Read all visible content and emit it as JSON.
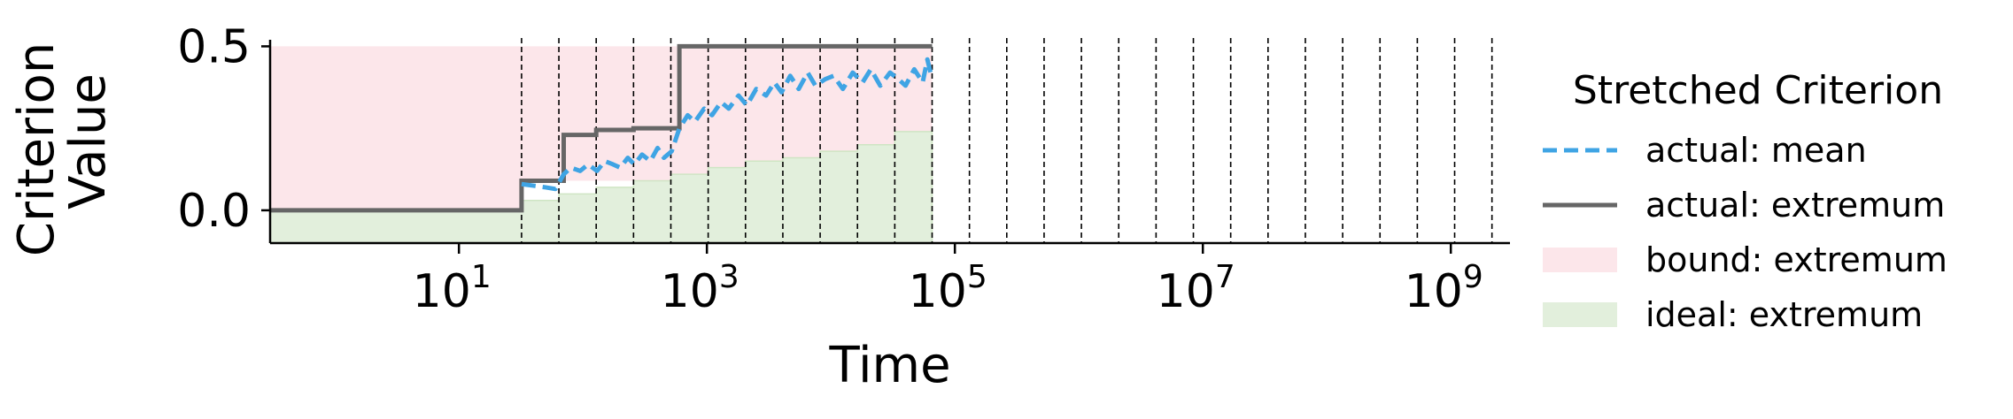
{
  "chart_data": {
    "type": "line",
    "xlabel": "Time",
    "ylabel_lines": [
      "Criterion",
      "Value"
    ],
    "xscale": "log",
    "xlim": [
      0.3,
      3000000000
    ],
    "ylim": [
      -0.1,
      0.52
    ],
    "xticks": [
      {
        "value": 10,
        "base": "10",
        "exp": "1"
      },
      {
        "value": 1000,
        "base": "10",
        "exp": "3"
      },
      {
        "value": 100000,
        "base": "10",
        "exp": "5"
      },
      {
        "value": 10000000,
        "base": "10",
        "exp": "7"
      },
      {
        "value": 1000000000,
        "base": "10",
        "exp": "9"
      }
    ],
    "yticks": [
      {
        "value": 0.0,
        "label": "0.0"
      },
      {
        "value": 0.5,
        "label": "0.5"
      }
    ],
    "vlines": [
      32,
      64,
      128,
      256,
      512,
      1024,
      2048,
      4096,
      8192,
      16384,
      32768,
      65536,
      131072,
      262144,
      524288,
      1048576,
      2097152,
      4194304,
      8388608,
      16777216,
      33554432,
      67108864,
      134217728,
      268435456,
      536870912,
      1073741824,
      2147483648
    ],
    "legend": {
      "title": "Stretched Criterion",
      "placement": "right",
      "entries": [
        {
          "label": "actual: mean",
          "style": "dashed-line",
          "color": "#3fa4e4"
        },
        {
          "label": "actual: extremum",
          "style": "solid-line",
          "color": "#666666"
        },
        {
          "label": "bound: extremum",
          "style": "patch",
          "color": "#fce6ea"
        },
        {
          "label": "ideal: extremum",
          "style": "patch",
          "color": "#e2efdc"
        }
      ]
    },
    "series": [
      {
        "name": "actual: extremum",
        "kind": "step-line",
        "color": "#666666",
        "x": [
          0.3,
          32,
          32,
          70,
          70,
          128,
          128,
          256,
          256,
          600,
          600,
          65536
        ],
        "y": [
          0.0,
          0.0,
          0.09,
          0.09,
          0.23,
          0.23,
          0.245,
          0.245,
          0.25,
          0.25,
          0.5,
          0.5
        ]
      },
      {
        "name": "actual: mean",
        "kind": "dashed-line",
        "color": "#3fa4e4",
        "x": [
          32,
          40,
          50,
          60,
          70,
          80,
          95,
          110,
          130,
          150,
          175,
          200,
          230,
          260,
          300,
          350,
          400,
          450,
          520,
          600,
          700,
          800,
          950,
          1100,
          1300,
          1500,
          1800,
          2100,
          2500,
          3000,
          3500,
          4000,
          4700,
          5500,
          6500,
          7500,
          9000,
          10500,
          12500,
          15000,
          18000,
          21000,
          25000,
          30000,
          35000,
          40000,
          47000,
          55000,
          60000,
          65536
        ],
        "y": [
          0.08,
          0.075,
          0.07,
          0.065,
          0.11,
          0.13,
          0.12,
          0.14,
          0.12,
          0.15,
          0.14,
          0.13,
          0.16,
          0.14,
          0.17,
          0.15,
          0.19,
          0.16,
          0.18,
          0.25,
          0.29,
          0.27,
          0.31,
          0.29,
          0.33,
          0.31,
          0.35,
          0.32,
          0.37,
          0.35,
          0.39,
          0.36,
          0.41,
          0.37,
          0.42,
          0.38,
          0.4,
          0.41,
          0.37,
          0.42,
          0.39,
          0.43,
          0.38,
          0.42,
          0.4,
          0.38,
          0.43,
          0.39,
          0.46,
          0.4
        ]
      },
      {
        "name": "bound: extremum",
        "kind": "fill-band",
        "color": "#fce6ea",
        "x": [
          0.3,
          32,
          32,
          65536
        ],
        "y_low": [
          0.0,
          0.0,
          0.09,
          0.09
        ],
        "y_high": [
          0.5,
          0.5,
          0.5,
          0.5
        ]
      },
      {
        "name": "ideal: extremum",
        "kind": "fill-step",
        "color": "#e2efdc",
        "x": [
          0.3,
          32,
          64,
          128,
          256,
          512,
          1024,
          2048,
          4096,
          8192,
          16384,
          32768,
          65536
        ],
        "y": [
          0.0,
          0.03,
          0.05,
          0.07,
          0.09,
          0.11,
          0.13,
          0.15,
          0.16,
          0.18,
          0.2,
          0.24,
          0.24
        ]
      }
    ]
  }
}
